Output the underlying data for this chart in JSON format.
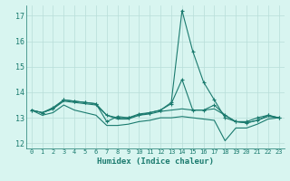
{
  "xlabel": "Humidex (Indice chaleur)",
  "x": [
    0,
    1,
    2,
    3,
    4,
    5,
    6,
    7,
    8,
    9,
    10,
    11,
    12,
    13,
    14,
    15,
    16,
    17,
    18,
    19,
    20,
    21,
    22,
    23
  ],
  "line1": [
    13.3,
    13.2,
    13.4,
    13.7,
    13.65,
    13.6,
    13.55,
    13.1,
    13.0,
    13.0,
    13.15,
    13.2,
    13.3,
    13.6,
    17.2,
    15.6,
    14.4,
    13.7,
    13.0,
    12.85,
    12.85,
    13.0,
    13.1,
    13.0
  ],
  "line2": [
    13.3,
    13.2,
    13.35,
    13.7,
    13.65,
    13.6,
    13.55,
    12.85,
    13.05,
    13.0,
    13.1,
    13.2,
    13.3,
    13.55,
    14.5,
    13.3,
    13.3,
    13.5,
    13.1,
    12.85,
    12.8,
    12.9,
    13.1,
    13.0
  ],
  "line3": [
    13.3,
    13.2,
    13.35,
    13.65,
    13.6,
    13.55,
    13.5,
    13.1,
    12.95,
    12.95,
    13.1,
    13.15,
    13.25,
    13.3,
    13.35,
    13.3,
    13.3,
    13.35,
    13.1,
    12.85,
    12.8,
    12.9,
    13.05,
    13.0
  ],
  "line4": [
    13.3,
    13.1,
    13.2,
    13.5,
    13.3,
    13.2,
    13.1,
    12.7,
    12.7,
    12.75,
    12.85,
    12.9,
    13.0,
    13.0,
    13.05,
    13.0,
    12.95,
    12.9,
    12.1,
    12.6,
    12.6,
    12.75,
    12.95,
    13.0
  ],
  "color": "#1a7a6e",
  "bg_color": "#d8f5f0",
  "grid_color": "#b8ddd8",
  "ylim": [
    11.8,
    17.4
  ],
  "yticks": [
    12,
    13,
    14,
    15,
    16,
    17
  ],
  "xticks": [
    0,
    1,
    2,
    3,
    4,
    5,
    6,
    7,
    8,
    9,
    10,
    11,
    12,
    13,
    14,
    15,
    16,
    17,
    18,
    19,
    20,
    21,
    22,
    23
  ]
}
